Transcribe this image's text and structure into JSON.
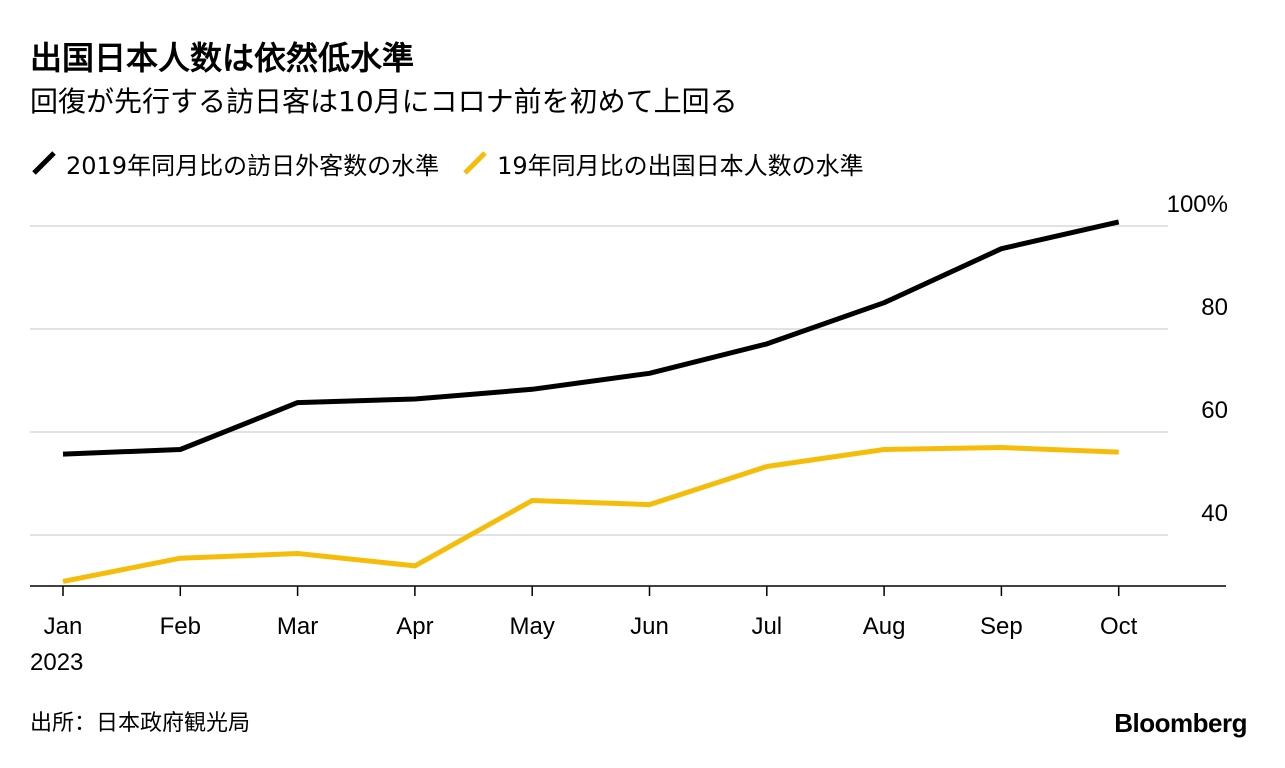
{
  "chart_data": {
    "type": "line",
    "title": "出国日本人数は依然低水準",
    "subtitle": "回復が先行する訪日客は10月にコロナ前を初めて上回る",
    "categories": [
      "Jan",
      "Feb",
      "Mar",
      "Apr",
      "May",
      "Jun",
      "Jul",
      "Aug",
      "Sep",
      "Oct"
    ],
    "year_label": "2023",
    "series": [
      {
        "name": "2019年同月比の訪日外客数の水準",
        "color": "#000000",
        "values": [
          55.7,
          56.6,
          65.7,
          66.4,
          68.3,
          71.4,
          77.1,
          85.1,
          95.6,
          100.8
        ]
      },
      {
        "name": "19年同月比の出国日本人数の水準",
        "color": "#f5bd0a",
        "values": [
          31.0,
          35.5,
          36.4,
          34.0,
          46.7,
          45.9,
          53.3,
          56.6,
          57.0,
          56.1
        ]
      }
    ],
    "y_ticks": [
      {
        "value": 100,
        "label": "100%"
      },
      {
        "value": 80,
        "label": "80"
      },
      {
        "value": 60,
        "label": "60"
      },
      {
        "value": 40,
        "label": "40"
      }
    ],
    "ylim": [
      31,
      100
    ],
    "grid": true,
    "legend_position": "top-left",
    "source": "出所：日本政府観光局",
    "brand": "Bloomberg"
  }
}
